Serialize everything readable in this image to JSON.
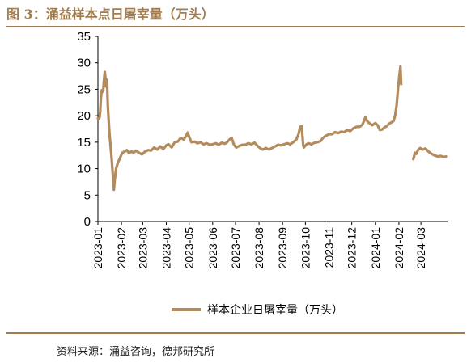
{
  "figure": {
    "title": "图 3：涌益样本点日屠宰量（万头）",
    "source": "资料来源：涌益咨询，德邦研究所"
  },
  "colors": {
    "accent": "#a27c4f",
    "series": "#b38b5d",
    "axis": "#000000"
  },
  "chart_data": {
    "type": "line",
    "title": "",
    "xlabel": "",
    "ylabel": "",
    "ylim": [
      0,
      35
    ],
    "yticks": [
      "0",
      "5",
      "10",
      "15",
      "20",
      "25",
      "30",
      "35"
    ],
    "xlim": [
      "2023-01-01",
      "2024-04-05"
    ],
    "xticks": [
      "2023-01",
      "2023-02",
      "2023-03",
      "2023-04",
      "2023-05",
      "2023-06",
      "2023-07",
      "2023-08",
      "2023-09",
      "2023-10",
      "2023-11",
      "2023-12",
      "2024-01",
      "2024-02",
      "2024-03"
    ],
    "grid": false,
    "legend_position": "bottom",
    "series": [
      {
        "name": "样本企业日屠宰量（万头）",
        "segments": [
          [
            [
              "2023-01-01",
              19.5
            ],
            [
              "2023-01-02",
              19.4
            ],
            [
              "2023-01-03",
              19.6
            ],
            [
              "2023-01-04",
              20.8
            ],
            [
              "2023-01-05",
              23.5
            ],
            [
              "2023-01-06",
              24.8
            ],
            [
              "2023-01-07",
              24.5
            ],
            [
              "2023-01-08",
              24.9
            ],
            [
              "2023-01-09",
              26.8
            ],
            [
              "2023-01-10",
              28.3
            ],
            [
              "2023-01-11",
              27.0
            ],
            [
              "2023-01-12",
              25.5
            ],
            [
              "2023-01-13",
              26.8
            ],
            [
              "2023-01-14",
              22.0
            ],
            [
              "2023-01-16",
              17.0
            ],
            [
              "2023-01-19",
              12.0
            ],
            [
              "2023-01-21",
              8.0
            ],
            [
              "2023-01-22",
              6.0
            ],
            [
              "2023-01-23",
              7.8
            ],
            [
              "2023-01-25",
              10.0
            ],
            [
              "2023-01-27",
              11.0
            ],
            [
              "2023-01-30",
              12.0
            ],
            [
              "2023-02-02",
              13.0
            ],
            [
              "2023-02-05",
              13.2
            ],
            [
              "2023-02-08",
              13.5
            ],
            [
              "2023-02-11",
              12.9
            ],
            [
              "2023-02-14",
              13.3
            ],
            [
              "2023-02-17",
              13.0
            ],
            [
              "2023-02-20",
              13.4
            ],
            [
              "2023-02-24",
              13.0
            ],
            [
              "2023-02-28",
              12.7
            ],
            [
              "2023-03-04",
              13.2
            ],
            [
              "2023-03-08",
              13.5
            ],
            [
              "2023-03-12",
              13.4
            ],
            [
              "2023-03-16",
              14.0
            ],
            [
              "2023-03-20",
              13.6
            ],
            [
              "2023-03-24",
              14.2
            ],
            [
              "2023-03-28",
              13.7
            ],
            [
              "2023-04-01",
              14.4
            ],
            [
              "2023-04-04",
              14.6
            ],
            [
              "2023-04-08",
              14.0
            ],
            [
              "2023-04-12",
              15.0
            ],
            [
              "2023-04-16",
              15.1
            ],
            [
              "2023-04-20",
              15.8
            ],
            [
              "2023-04-24",
              15.5
            ],
            [
              "2023-04-27",
              16.2
            ],
            [
              "2023-04-29",
              16.8
            ],
            [
              "2023-05-01",
              16.0
            ],
            [
              "2023-05-04",
              15.0
            ],
            [
              "2023-05-08",
              15.1
            ],
            [
              "2023-05-12",
              14.8
            ],
            [
              "2023-05-16",
              15.0
            ],
            [
              "2023-05-20",
              14.6
            ],
            [
              "2023-05-24",
              14.8
            ],
            [
              "2023-05-28",
              14.5
            ],
            [
              "2023-06-01",
              14.6
            ],
            [
              "2023-06-05",
              14.8
            ],
            [
              "2023-06-09",
              14.5
            ],
            [
              "2023-06-13",
              14.9
            ],
            [
              "2023-06-17",
              14.7
            ],
            [
              "2023-06-20",
              15.0
            ],
            [
              "2023-06-23",
              15.5
            ],
            [
              "2023-06-26",
              15.8
            ],
            [
              "2023-06-29",
              14.5
            ],
            [
              "2023-07-02",
              14.0
            ],
            [
              "2023-07-06",
              14.3
            ],
            [
              "2023-07-10",
              14.5
            ],
            [
              "2023-07-14",
              14.5
            ],
            [
              "2023-07-18",
              14.8
            ],
            [
              "2023-07-22",
              14.6
            ],
            [
              "2023-07-26",
              14.9
            ],
            [
              "2023-07-30",
              14.3
            ],
            [
              "2023-08-03",
              13.8
            ],
            [
              "2023-08-06",
              13.6
            ],
            [
              "2023-08-10",
              13.9
            ],
            [
              "2023-08-14",
              13.6
            ],
            [
              "2023-08-18",
              13.9
            ],
            [
              "2023-08-22",
              14.2
            ],
            [
              "2023-08-26",
              14.5
            ],
            [
              "2023-08-30",
              14.4
            ],
            [
              "2023-09-03",
              14.6
            ],
            [
              "2023-09-07",
              14.8
            ],
            [
              "2023-09-11",
              14.6
            ],
            [
              "2023-09-15",
              15.0
            ],
            [
              "2023-09-19",
              15.5
            ],
            [
              "2023-09-22",
              16.5
            ],
            [
              "2023-09-24",
              17.9
            ],
            [
              "2023-09-26",
              18.0
            ],
            [
              "2023-09-27",
              16.5
            ],
            [
              "2023-09-28",
              14.5
            ],
            [
              "2023-09-29",
              14.0
            ],
            [
              "2023-10-02",
              14.5
            ],
            [
              "2023-10-05",
              14.8
            ],
            [
              "2023-10-09",
              14.6
            ],
            [
              "2023-10-13",
              14.9
            ],
            [
              "2023-10-17",
              15.0
            ],
            [
              "2023-10-21",
              15.2
            ],
            [
              "2023-10-24",
              15.8
            ],
            [
              "2023-10-28",
              16.2
            ],
            [
              "2023-11-01",
              16.5
            ],
            [
              "2023-11-05",
              16.5
            ],
            [
              "2023-11-09",
              16.9
            ],
            [
              "2023-11-13",
              16.7
            ],
            [
              "2023-11-17",
              17.0
            ],
            [
              "2023-11-21",
              16.9
            ],
            [
              "2023-11-25",
              17.3
            ],
            [
              "2023-11-29",
              17.1
            ],
            [
              "2023-12-03",
              17.6
            ],
            [
              "2023-12-07",
              17.9
            ],
            [
              "2023-12-11",
              17.9
            ],
            [
              "2023-12-15",
              18.3
            ],
            [
              "2023-12-17",
              19.0
            ],
            [
              "2023-12-19",
              19.8
            ],
            [
              "2023-12-21",
              19.0
            ],
            [
              "2023-12-24",
              18.6
            ],
            [
              "2023-12-28",
              18.2
            ],
            [
              "2024-01-01",
              18.6
            ],
            [
              "2024-01-04",
              18.2
            ],
            [
              "2024-01-07",
              17.3
            ],
            [
              "2024-01-10",
              17.4
            ],
            [
              "2024-01-13",
              17.8
            ],
            [
              "2024-01-16",
              18.0
            ],
            [
              "2024-01-19",
              18.5
            ],
            [
              "2024-01-22",
              18.7
            ],
            [
              "2024-01-25",
              19.0
            ],
            [
              "2024-01-27",
              20.0
            ],
            [
              "2024-01-29",
              22.0
            ],
            [
              "2024-01-31",
              25.5
            ],
            [
              "2024-02-02",
              28.0
            ],
            [
              "2024-02-03",
              29.3
            ],
            [
              "2024-02-04",
              26.0
            ]
          ],
          [
            [
              "2024-02-20",
              11.8
            ],
            [
              "2024-02-21",
              12.3
            ],
            [
              "2024-02-22",
              13.0
            ],
            [
              "2024-02-24",
              12.8
            ],
            [
              "2024-02-26",
              13.5
            ],
            [
              "2024-02-29",
              13.9
            ],
            [
              "2024-03-03",
              13.6
            ],
            [
              "2024-03-07",
              13.8
            ],
            [
              "2024-03-11",
              13.2
            ],
            [
              "2024-03-15",
              12.8
            ],
            [
              "2024-03-19",
              12.5
            ],
            [
              "2024-03-23",
              12.3
            ],
            [
              "2024-03-27",
              12.4
            ],
            [
              "2024-03-31",
              12.2
            ],
            [
              "2024-04-03",
              12.3
            ]
          ]
        ]
      }
    ]
  }
}
